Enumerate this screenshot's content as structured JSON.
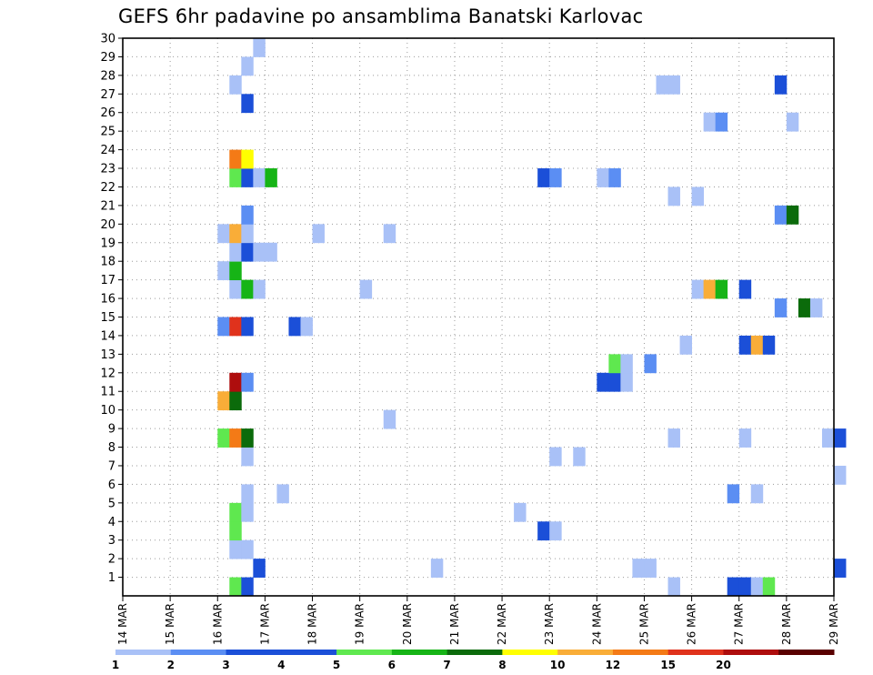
{
  "chart_data": {
    "type": "heatmap",
    "title": "GEFS 6hr padavine po ansamblima Banatski Karlovac",
    "x_tick_labels": [
      "14 MAR",
      "15 MAR",
      "16 MAR",
      "17 MAR",
      "18 MAR",
      "19 MAR",
      "20 MAR",
      "21 MAR",
      "22 MAR",
      "23 MAR",
      "24 MAR",
      "25 MAR",
      "26 MAR",
      "27 MAR",
      "28 MAR",
      "29 MAR"
    ],
    "y_tick_labels": [
      "1",
      "2",
      "3",
      "4",
      "5",
      "6",
      "7",
      "8",
      "9",
      "10",
      "11",
      "12",
      "13",
      "14",
      "15",
      "16",
      "17",
      "18",
      "19",
      "20",
      "21",
      "22",
      "23",
      "24",
      "25",
      "26",
      "27",
      "28",
      "29",
      "30"
    ],
    "x_range": [
      "14 MAR",
      "29 MAR"
    ],
    "y_range": [
      0,
      30
    ],
    "grid": true,
    "legend_position": "bottom",
    "legend": {
      "labels": [
        "1",
        "2",
        "3",
        "4",
        "5",
        "6",
        "7",
        "8",
        "10",
        "12",
        "15",
        "20"
      ],
      "colors": [
        "#a9c1f7",
        "#5b8ef3",
        "#1b4fd8",
        "#1b4fd8",
        "#5fe84f",
        "#16b416",
        "#0b6b0b",
        "#ffff00",
        "#f9ad38",
        "#f47a16",
        "#e0321c",
        "#ae0d0d",
        "#5a0000"
      ]
    },
    "cells": [
      {
        "day": 16.25,
        "member": 0,
        "color": "#5fe84f"
      },
      {
        "day": 16.5,
        "member": 0,
        "color": "#1b4fd8"
      },
      {
        "day": 25.5,
        "member": 0,
        "color": "#a9c1f7"
      },
      {
        "day": 26.75,
        "member": 0,
        "color": "#1b4fd8"
      },
      {
        "day": 27.0,
        "member": 0,
        "color": "#1b4fd8"
      },
      {
        "day": 27.25,
        "member": 0,
        "color": "#a9c1f7"
      },
      {
        "day": 27.5,
        "member": 0,
        "color": "#5fe84f"
      },
      {
        "day": 16.75,
        "member": 1,
        "color": "#1b4fd8"
      },
      {
        "day": 20.5,
        "member": 1,
        "color": "#a9c1f7"
      },
      {
        "day": 24.75,
        "member": 1,
        "color": "#a9c1f7"
      },
      {
        "day": 25.0,
        "member": 1,
        "color": "#a9c1f7"
      },
      {
        "day": 29.0,
        "member": 1,
        "color": "#1b4fd8"
      },
      {
        "day": 16.25,
        "member": 2,
        "color": "#a9c1f7"
      },
      {
        "day": 16.5,
        "member": 2,
        "color": "#a9c1f7"
      },
      {
        "day": 16.25,
        "member": 3,
        "color": "#5fe84f"
      },
      {
        "day": 22.75,
        "member": 3,
        "color": "#1b4fd8"
      },
      {
        "day": 23.0,
        "member": 3,
        "color": "#a9c1f7"
      },
      {
        "day": 16.25,
        "member": 4,
        "color": "#5fe84f"
      },
      {
        "day": 16.5,
        "member": 4,
        "color": "#a9c1f7"
      },
      {
        "day": 22.25,
        "member": 4,
        "color": "#a9c1f7"
      },
      {
        "day": 16.5,
        "member": 5,
        "color": "#a9c1f7"
      },
      {
        "day": 17.25,
        "member": 5,
        "color": "#a9c1f7"
      },
      {
        "day": 26.75,
        "member": 5,
        "color": "#5b8ef3"
      },
      {
        "day": 27.25,
        "member": 5,
        "color": "#a9c1f7"
      },
      {
        "day": 29.0,
        "member": 6,
        "color": "#a9c1f7"
      },
      {
        "day": 16.5,
        "member": 7,
        "color": "#a9c1f7"
      },
      {
        "day": 23.0,
        "member": 7,
        "color": "#a9c1f7"
      },
      {
        "day": 23.5,
        "member": 7,
        "color": "#a9c1f7"
      },
      {
        "day": 16.0,
        "member": 8,
        "color": "#5fe84f"
      },
      {
        "day": 16.25,
        "member": 8,
        "color": "#f47a16"
      },
      {
        "day": 16.5,
        "member": 8,
        "color": "#0b6b0b"
      },
      {
        "day": 25.5,
        "member": 8,
        "color": "#a9c1f7"
      },
      {
        "day": 27.0,
        "member": 8,
        "color": "#a9c1f7"
      },
      {
        "day": 28.75,
        "member": 8,
        "color": "#a9c1f7"
      },
      {
        "day": 29.0,
        "member": 8,
        "color": "#1b4fd8"
      },
      {
        "day": 19.5,
        "member": 9,
        "color": "#a9c1f7"
      },
      {
        "day": 16.0,
        "member": 10,
        "color": "#f9ad38"
      },
      {
        "day": 16.25,
        "member": 10,
        "color": "#0b6b0b"
      },
      {
        "day": 16.25,
        "member": 11,
        "color": "#ae0d0d"
      },
      {
        "day": 16.5,
        "member": 11,
        "color": "#5b8ef3"
      },
      {
        "day": 24.0,
        "member": 11,
        "color": "#1b4fd8"
      },
      {
        "day": 24.25,
        "member": 11,
        "color": "#1b4fd8"
      },
      {
        "day": 24.5,
        "member": 11,
        "color": "#a9c1f7"
      },
      {
        "day": 24.25,
        "member": 12,
        "color": "#5fe84f"
      },
      {
        "day": 24.5,
        "member": 12,
        "color": "#a9c1f7"
      },
      {
        "day": 25.0,
        "member": 12,
        "color": "#5b8ef3"
      },
      {
        "day": 25.75,
        "member": 13,
        "color": "#a9c1f7"
      },
      {
        "day": 27.0,
        "member": 13,
        "color": "#1b4fd8"
      },
      {
        "day": 27.25,
        "member": 13,
        "color": "#f9ad38"
      },
      {
        "day": 27.5,
        "member": 13,
        "color": "#1b4fd8"
      },
      {
        "day": 16.0,
        "member": 14,
        "color": "#5b8ef3"
      },
      {
        "day": 16.25,
        "member": 14,
        "color": "#e0321c"
      },
      {
        "day": 16.5,
        "member": 14,
        "color": "#1b4fd8"
      },
      {
        "day": 17.5,
        "member": 14,
        "color": "#1b4fd8"
      },
      {
        "day": 17.75,
        "member": 14,
        "color": "#a9c1f7"
      },
      {
        "day": 27.75,
        "member": 15,
        "color": "#5b8ef3"
      },
      {
        "day": 28.25,
        "member": 15,
        "color": "#0b6b0b"
      },
      {
        "day": 28.5,
        "member": 15,
        "color": "#a9c1f7"
      },
      {
        "day": 16.25,
        "member": 16,
        "color": "#a9c1f7"
      },
      {
        "day": 16.5,
        "member": 16,
        "color": "#16b416"
      },
      {
        "day": 16.75,
        "member": 16,
        "color": "#a9c1f7"
      },
      {
        "day": 19.0,
        "member": 16,
        "color": "#a9c1f7"
      },
      {
        "day": 26.0,
        "member": 16,
        "color": "#a9c1f7"
      },
      {
        "day": 26.25,
        "member": 16,
        "color": "#f9ad38"
      },
      {
        "day": 26.5,
        "member": 16,
        "color": "#16b416"
      },
      {
        "day": 27.0,
        "member": 16,
        "color": "#1b4fd8"
      },
      {
        "day": 16.0,
        "member": 17,
        "color": "#a9c1f7"
      },
      {
        "day": 16.25,
        "member": 17,
        "color": "#16b416"
      },
      {
        "day": 16.25,
        "member": 18,
        "color": "#a9c1f7"
      },
      {
        "day": 16.5,
        "member": 18,
        "color": "#1b4fd8"
      },
      {
        "day": 16.75,
        "member": 18,
        "color": "#a9c1f7"
      },
      {
        "day": 17.0,
        "member": 18,
        "color": "#a9c1f7"
      },
      {
        "day": 16.0,
        "member": 19,
        "color": "#a9c1f7"
      },
      {
        "day": 16.25,
        "member": 19,
        "color": "#f9ad38"
      },
      {
        "day": 16.5,
        "member": 19,
        "color": "#a9c1f7"
      },
      {
        "day": 18.0,
        "member": 19,
        "color": "#a9c1f7"
      },
      {
        "day": 19.5,
        "member": 19,
        "color": "#a9c1f7"
      },
      {
        "day": 16.5,
        "member": 20,
        "color": "#5b8ef3"
      },
      {
        "day": 27.75,
        "member": 20,
        "color": "#5b8ef3"
      },
      {
        "day": 28.0,
        "member": 20,
        "color": "#0b6b0b"
      },
      {
        "day": 25.5,
        "member": 21,
        "color": "#a9c1f7"
      },
      {
        "day": 26.0,
        "member": 21,
        "color": "#a9c1f7"
      },
      {
        "day": 16.25,
        "member": 22,
        "color": "#5fe84f"
      },
      {
        "day": 16.5,
        "member": 22,
        "color": "#1b4fd8"
      },
      {
        "day": 16.75,
        "member": 22,
        "color": "#a9c1f7"
      },
      {
        "day": 17.0,
        "member": 22,
        "color": "#16b416"
      },
      {
        "day": 22.75,
        "member": 22,
        "color": "#1b4fd8"
      },
      {
        "day": 23.0,
        "member": 22,
        "color": "#5b8ef3"
      },
      {
        "day": 24.0,
        "member": 22,
        "color": "#a9c1f7"
      },
      {
        "day": 24.25,
        "member": 22,
        "color": "#5b8ef3"
      },
      {
        "day": 16.25,
        "member": 23,
        "color": "#f47a16"
      },
      {
        "day": 16.5,
        "member": 23,
        "color": "#ffff00"
      },
      {
        "day": 26.25,
        "member": 25,
        "color": "#a9c1f7"
      },
      {
        "day": 26.5,
        "member": 25,
        "color": "#5b8ef3"
      },
      {
        "day": 28.0,
        "member": 25,
        "color": "#a9c1f7"
      },
      {
        "day": 16.5,
        "member": 26,
        "color": "#1b4fd8"
      },
      {
        "day": 16.25,
        "member": 27,
        "color": "#a9c1f7"
      },
      {
        "day": 25.25,
        "member": 27,
        "color": "#a9c1f7"
      },
      {
        "day": 25.5,
        "member": 27,
        "color": "#a9c1f7"
      },
      {
        "day": 27.75,
        "member": 27,
        "color": "#1b4fd8"
      },
      {
        "day": 16.5,
        "member": 28,
        "color": "#a9c1f7"
      },
      {
        "day": 16.75,
        "member": 29,
        "color": "#a9c1f7"
      }
    ]
  }
}
